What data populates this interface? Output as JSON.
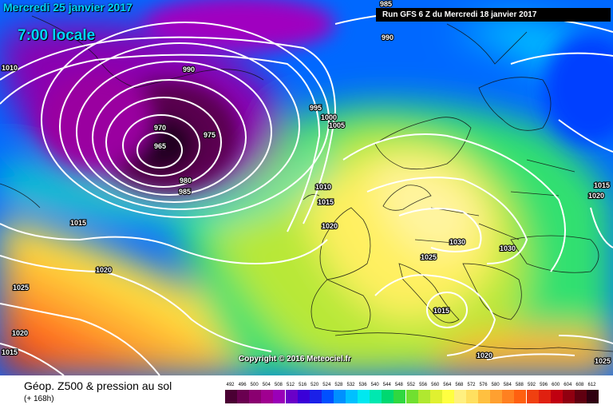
{
  "header": {
    "date": "Mercredi 25 janvier 2017",
    "hour": "7:00 locale",
    "run": "Run GFS 6 Z du Mercredi 18 janvier 2017"
  },
  "copyright": "Copyright © 2016 Meteociel.fr",
  "footer": {
    "title": "Géop. Z500 & pression au sol",
    "subtitle": "(+ 168h)"
  },
  "isobar_labels": [
    "1010",
    "985",
    "990",
    "990",
    "995",
    "1000",
    "1005",
    "970",
    "975",
    "965",
    "980",
    "985",
    "1010",
    "1015",
    "1015",
    "1020",
    "1015",
    "1020",
    "1030",
    "1030",
    "1025",
    "1025",
    "1020",
    "1015",
    "1015",
    "1020",
    "1020",
    "1025"
  ],
  "colorbar": {
    "values": [
      "492",
      "496",
      "500",
      "504",
      "508",
      "512",
      "516",
      "520",
      "524",
      "528",
      "532",
      "536",
      "540",
      "544",
      "548",
      "552",
      "556",
      "560",
      "564",
      "568",
      "572",
      "576",
      "580",
      "584",
      "588",
      "592",
      "596",
      "600",
      "604",
      "608",
      "612"
    ],
    "colors": [
      "#4a0033",
      "#6a0050",
      "#8a0070",
      "#a00090",
      "#9a00b8",
      "#6a00c8",
      "#3a00d8",
      "#1a20e8",
      "#0050ff",
      "#0090ff",
      "#00c0ff",
      "#00e8f0",
      "#00e8b0",
      "#00d870",
      "#30d840",
      "#70e030",
      "#b0e830",
      "#e0f030",
      "#ffff40",
      "#fff080",
      "#ffe060",
      "#ffc040",
      "#ffa030",
      "#ff8020",
      "#ff6010",
      "#f04010",
      "#e02010",
      "#c00010",
      "#900010",
      "#600010",
      "#300010"
    ]
  }
}
